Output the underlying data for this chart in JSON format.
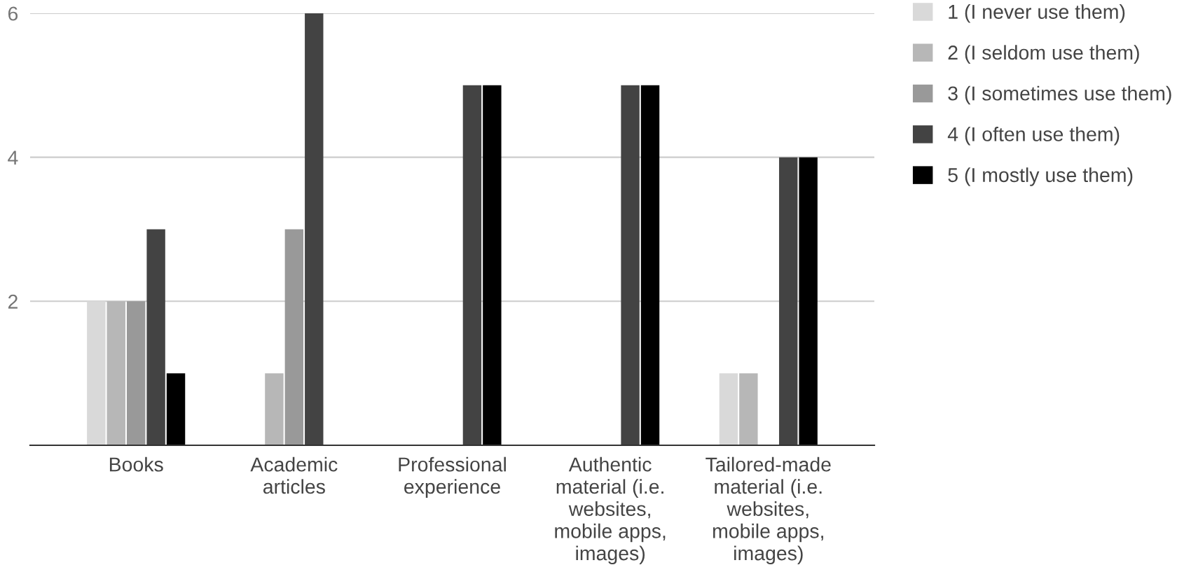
{
  "chart_data": {
    "type": "bar",
    "categories": [
      "Books",
      "Academic articles",
      "Professional experience",
      "Authentic material (i.e. websites, mobile apps, images)",
      "Tailored-made material (i.e. websites, mobile apps, images)"
    ],
    "series": [
      {
        "name": "1 (I never use them)",
        "color": "#d9d9d9",
        "values": [
          2,
          0,
          0,
          0,
          1
        ]
      },
      {
        "name": "2 (I seldom use them)",
        "color": "#b7b7b7",
        "values": [
          2,
          1,
          0,
          0,
          1
        ]
      },
      {
        "name": "3 (I sometimes use them)",
        "color": "#999999",
        "values": [
          2,
          3,
          0,
          0,
          0
        ]
      },
      {
        "name": "4 (I often use them)",
        "color": "#434343",
        "values": [
          3,
          6,
          5,
          5,
          4
        ]
      },
      {
        "name": "5 (I mostly use them)",
        "color": "#000000",
        "values": [
          1,
          0,
          5,
          5,
          4
        ]
      }
    ],
    "ylim": [
      0,
      6
    ],
    "yticks": [
      2,
      4,
      6
    ],
    "grid": "y",
    "legend": "top right"
  }
}
